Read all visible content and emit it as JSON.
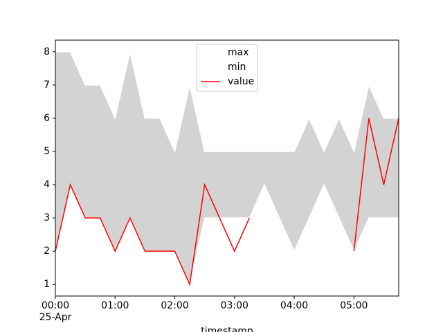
{
  "chart_data": {
    "type": "line",
    "x": [
      "00:00",
      "00:15",
      "00:30",
      "00:45",
      "01:00",
      "01:15",
      "01:30",
      "01:45",
      "02:00",
      "02:15",
      "02:30",
      "02:45",
      "03:00",
      "03:15",
      "03:30",
      "03:45",
      "04:00",
      "04:15",
      "04:30",
      "04:45",
      "05:00",
      "05:15",
      "05:30",
      "05:45"
    ],
    "series": [
      {
        "name": "max",
        "color": "#ffffff",
        "values": [
          8,
          8,
          7,
          7,
          6,
          8,
          6,
          6,
          5,
          7,
          5,
          5,
          5,
          5,
          5,
          5,
          5,
          6,
          5,
          6,
          5,
          7,
          6,
          6
        ]
      },
      {
        "name": "min",
        "color": "#ffffff",
        "values": [
          2,
          4,
          3,
          3,
          2,
          3,
          2,
          2,
          2,
          1,
          3,
          3,
          3,
          3,
          4,
          3,
          2,
          3,
          4,
          3,
          2,
          3,
          3,
          3
        ]
      },
      {
        "name": "value",
        "color": "#ff0000",
        "values": [
          2,
          4,
          3,
          3,
          2,
          3,
          2,
          2,
          2,
          1,
          4,
          3,
          2,
          3,
          null,
          null,
          null,
          null,
          null,
          null,
          2,
          6,
          4,
          6
        ]
      }
    ],
    "fill_color": "#d3d3d3",
    "xlabel": "timestamp",
    "xlim": [
      "00:00",
      "05:45"
    ],
    "xticks": [
      "00:00",
      "01:00",
      "02:00",
      "03:00",
      "04:00",
      "05:00"
    ],
    "xtick_date": "25-Apr",
    "ylim": [
      0.65,
      8.35
    ],
    "yticks": [
      1,
      2,
      3,
      4,
      5,
      6,
      7,
      8
    ],
    "legend": "upper center"
  }
}
